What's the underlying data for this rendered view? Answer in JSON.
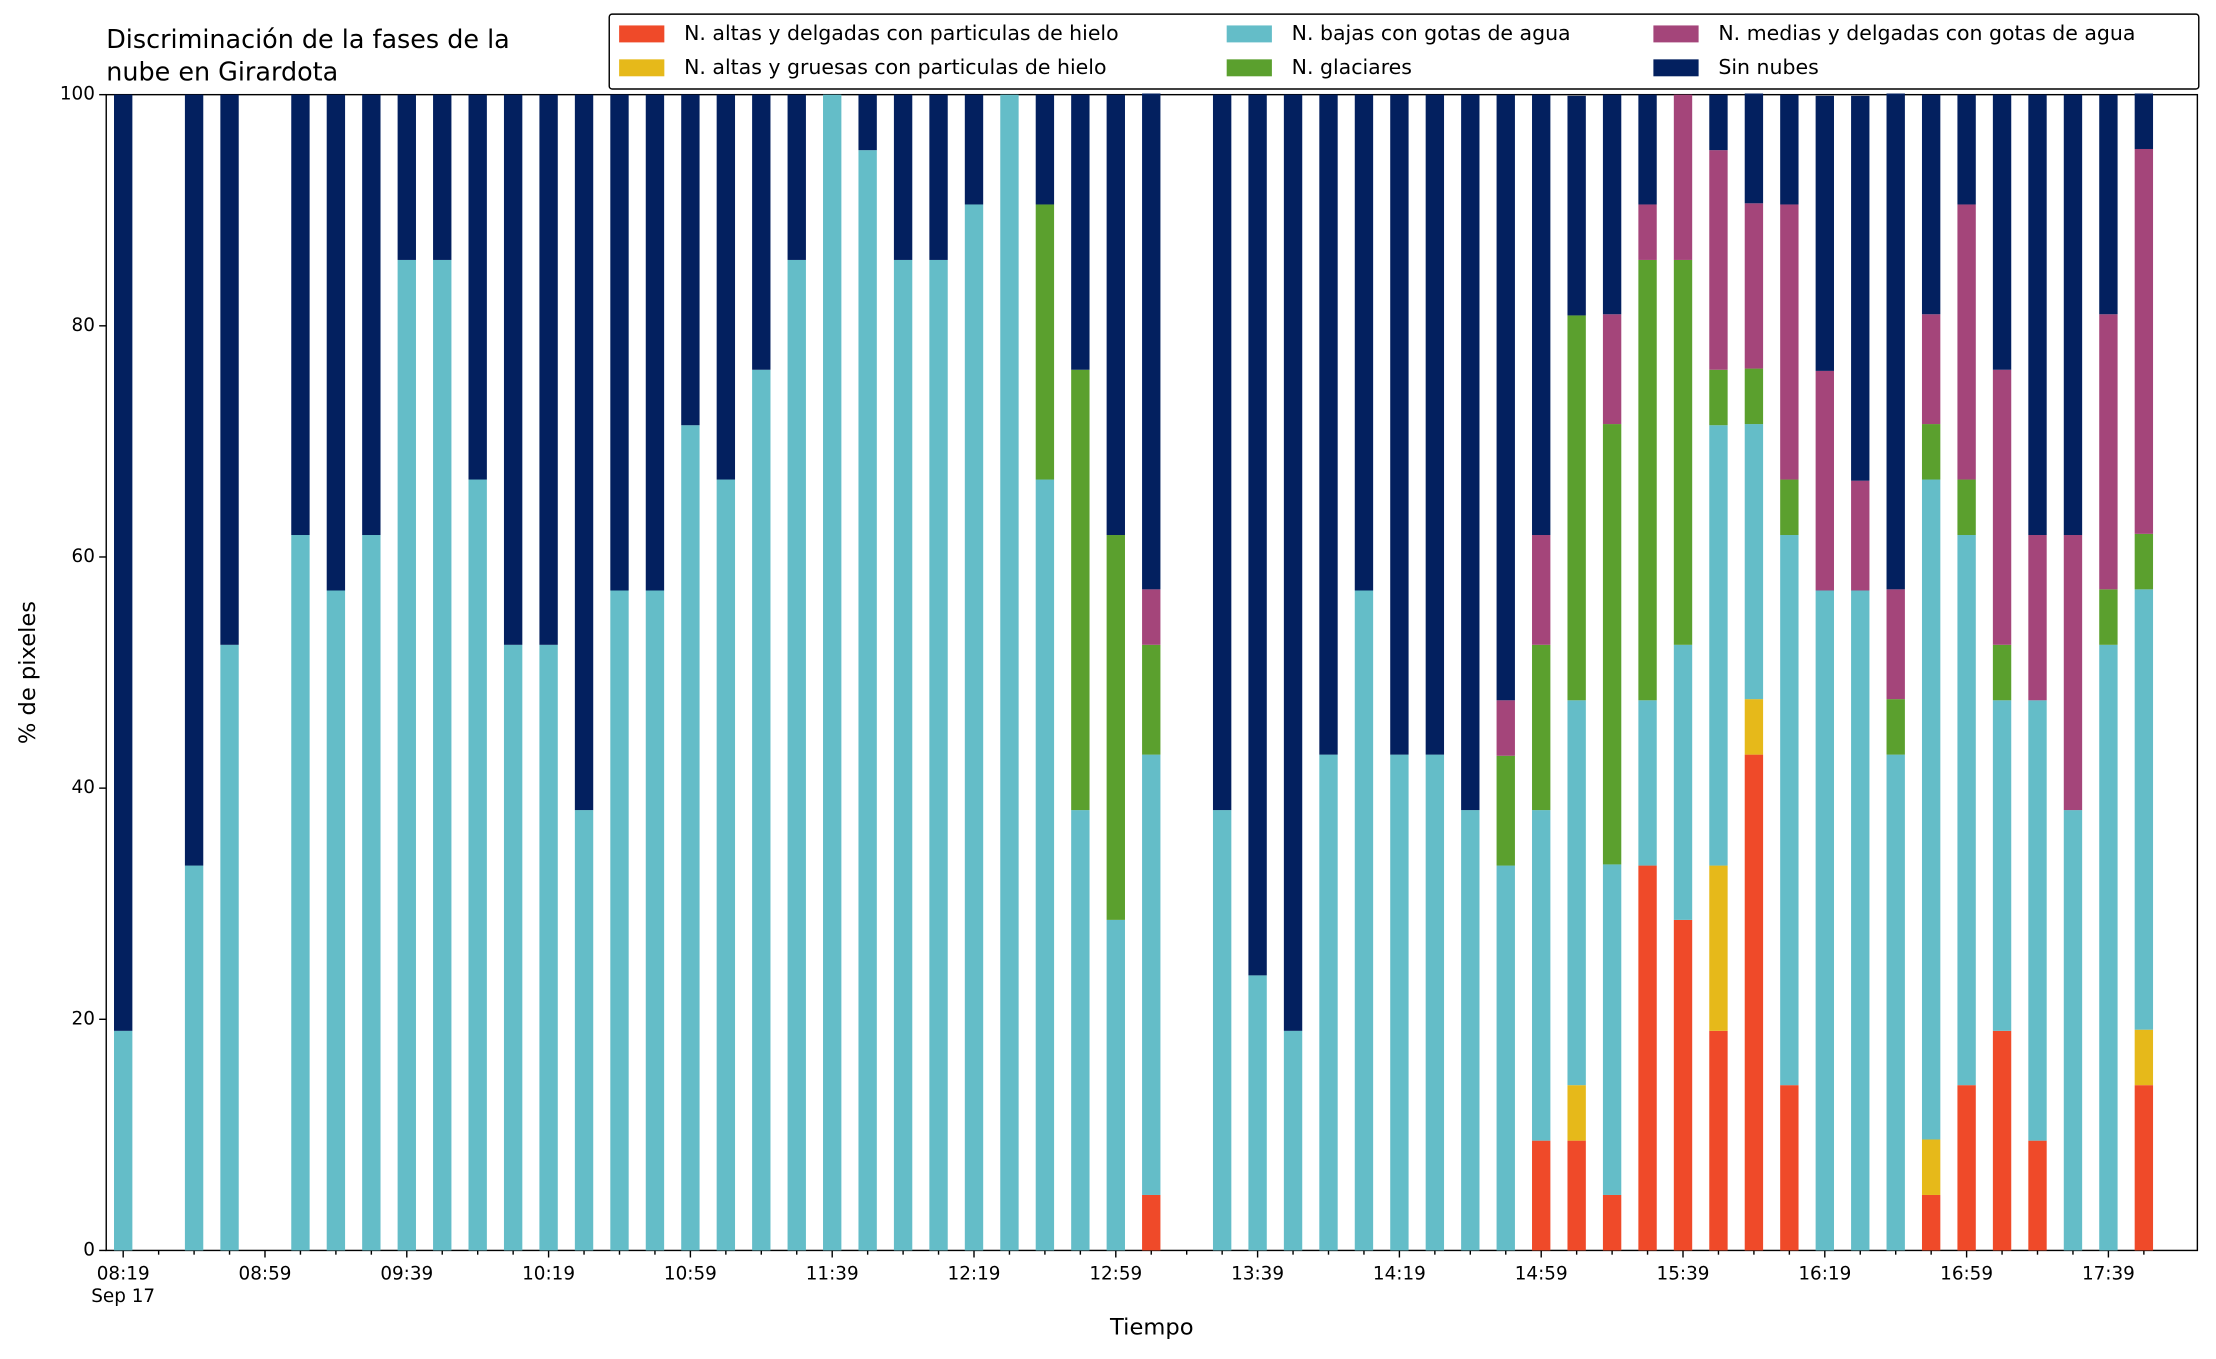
{
  "chart_data": {
    "type": "stacked_bar",
    "title": [
      "Discriminación de la fases de la",
      "nube en Girardota"
    ],
    "xlabel": "Tiempo",
    "ylabel": "% de pixeles",
    "x_sublabel": "Sep 17",
    "categories": [
      "08:19",
      null,
      null,
      null,
      "08:59",
      null,
      null,
      null,
      "09:39",
      null,
      null,
      null,
      "10:19",
      null,
      null,
      null,
      "10:59",
      null,
      null,
      null,
      "11:39",
      null,
      null,
      null,
      "12:19",
      null,
      null,
      null,
      "12:59",
      null,
      null,
      null,
      "13:39",
      null,
      null,
      null,
      "14:19",
      null,
      null,
      null,
      "14:59",
      null,
      null,
      null,
      "15:39",
      null,
      null,
      null,
      "16:19",
      null,
      null,
      null,
      "16:59",
      null,
      null,
      null,
      "17:39",
      null
    ],
    "ylim": [
      0,
      100
    ],
    "yticks": [
      0,
      20,
      40,
      60,
      80,
      100
    ],
    "legend": "top-right",
    "series": [
      {
        "name": "N. altas y delgadas con particulas de hielo",
        "color": "#ef4a29",
        "values": [
          0,
          null,
          0,
          0,
          null,
          0,
          0,
          0,
          0,
          0,
          0,
          0,
          0,
          0,
          0,
          0,
          0,
          0,
          0,
          0,
          0,
          0,
          0,
          0,
          0,
          0,
          0,
          0,
          0,
          4.8,
          null,
          0,
          0,
          0,
          0,
          0,
          0,
          0,
          0,
          0,
          9.5,
          9.5,
          4.8,
          33.3,
          28.6,
          19,
          42.9,
          14.3,
          0,
          0,
          0,
          4.8,
          14.3,
          19,
          9.5,
          0,
          0,
          14.3
        ]
      },
      {
        "name": "N. altas y gruesas con particulas de hielo",
        "color": "#e6b91a",
        "values": [
          0,
          null,
          0,
          0,
          null,
          0,
          0,
          0,
          0,
          0,
          0,
          0,
          0,
          0,
          0,
          0,
          0,
          0,
          0,
          0,
          0,
          0,
          0,
          0,
          0,
          0,
          0,
          0,
          0,
          0,
          null,
          0,
          0,
          0,
          0,
          0,
          0,
          0,
          0,
          0,
          0,
          4.8,
          0,
          0,
          0,
          14.3,
          4.8,
          0,
          0,
          0,
          0,
          4.8,
          0,
          0,
          0,
          0,
          0,
          4.8
        ]
      },
      {
        "name": "N. bajas con gotas de agua",
        "color": "#64bdc8",
        "values": [
          19,
          null,
          33.3,
          52.4,
          null,
          61.9,
          57.1,
          61.9,
          85.7,
          85.7,
          66.7,
          52.4,
          52.4,
          38.1,
          57.1,
          57.1,
          71.4,
          66.7,
          76.2,
          85.7,
          100,
          95.2,
          85.7,
          85.7,
          90.5,
          100,
          66.7,
          38.1,
          28.6,
          38.1,
          null,
          38.1,
          23.8,
          19,
          42.9,
          57.1,
          42.9,
          42.9,
          38.1,
          33.3,
          28.6,
          33.3,
          28.6,
          14.3,
          23.8,
          38.1,
          23.8,
          47.6,
          57.1,
          57.1,
          42.9,
          57.1,
          47.6,
          28.6,
          38.1,
          38.1,
          52.4,
          38.1
        ]
      },
      {
        "name": "N. glaciares",
        "color": "#5ba02e",
        "values": [
          0,
          null,
          0,
          0,
          null,
          0,
          0,
          0,
          0,
          0,
          0,
          0,
          0,
          0,
          0,
          0,
          0,
          0,
          0,
          0,
          0,
          0,
          0,
          0,
          0,
          0,
          23.8,
          38.1,
          33.3,
          9.5,
          null,
          0,
          0,
          0,
          0,
          0,
          0,
          0,
          0,
          9.5,
          14.3,
          33.3,
          38.1,
          38.1,
          33.3,
          4.8,
          4.8,
          4.8,
          0,
          0,
          4.8,
          4.8,
          4.8,
          4.8,
          0,
          0,
          4.8,
          4.8
        ]
      },
      {
        "name": "N. medias y delgadas con gotas de agua",
        "color": "#a4457a",
        "values": [
          0,
          null,
          0,
          0,
          null,
          0,
          0,
          0,
          0,
          0,
          0,
          0,
          0,
          0,
          0,
          0,
          0,
          0,
          0,
          0,
          0,
          0,
          0,
          0,
          0,
          0,
          0,
          0,
          0,
          4.8,
          null,
          0,
          0,
          0,
          0,
          0,
          0,
          0,
          0,
          4.8,
          9.5,
          0,
          9.5,
          4.8,
          14.3,
          19,
          14.3,
          23.8,
          19,
          9.5,
          9.5,
          9.5,
          23.8,
          23.8,
          14.3,
          23.8,
          23.8,
          33.3
        ]
      },
      {
        "name": "Sin nubes",
        "color": "#03205f",
        "values": [
          81,
          null,
          66.7,
          47.6,
          null,
          38.1,
          42.9,
          38.1,
          14.3,
          14.3,
          33.3,
          47.6,
          47.6,
          61.9,
          42.9,
          42.9,
          28.6,
          33.3,
          23.8,
          14.3,
          0,
          4.8,
          14.3,
          14.3,
          9.5,
          0,
          9.5,
          23.8,
          38.1,
          42.9,
          null,
          61.9,
          76.2,
          81,
          57.1,
          42.9,
          57.1,
          57.1,
          61.9,
          52.4,
          38.1,
          19,
          19,
          9.5,
          0,
          4.8,
          9.5,
          9.5,
          23.8,
          33.3,
          42.9,
          19,
          9.5,
          23.8,
          38.1,
          38.1,
          19,
          4.8
        ]
      }
    ]
  }
}
